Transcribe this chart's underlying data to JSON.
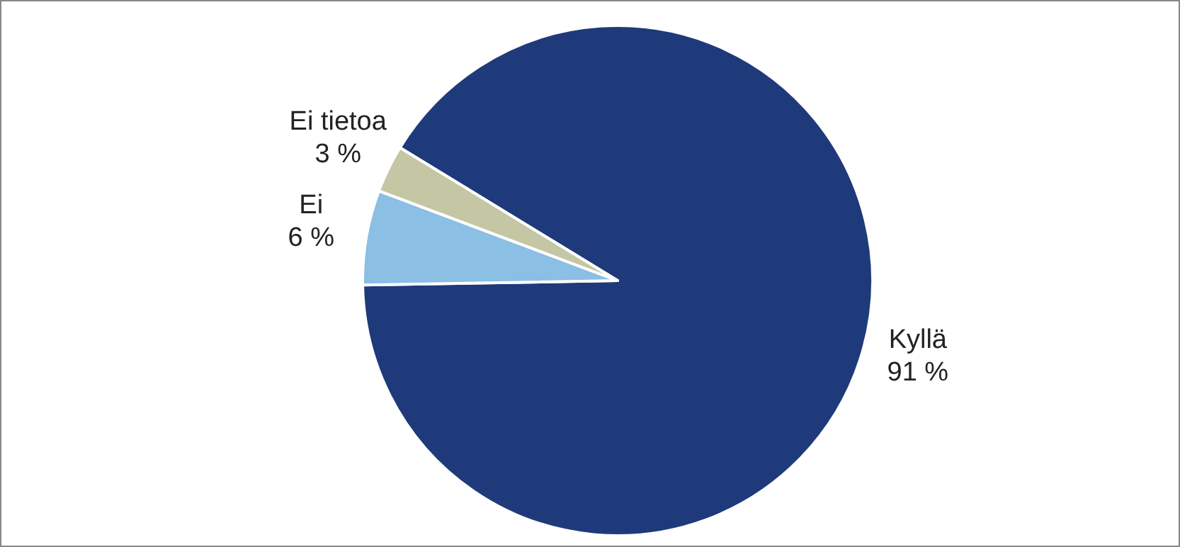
{
  "chart_data": {
    "type": "pie",
    "categories": [
      "Kyllä",
      "Ei",
      "Ei tietoa"
    ],
    "values": [
      91,
      6,
      3
    ],
    "colors": [
      "#1f3a7a",
      "#8bbfe3",
      "#c4c6a4"
    ],
    "value_labels": [
      "91 %",
      "6 %",
      "3 %"
    ]
  }
}
